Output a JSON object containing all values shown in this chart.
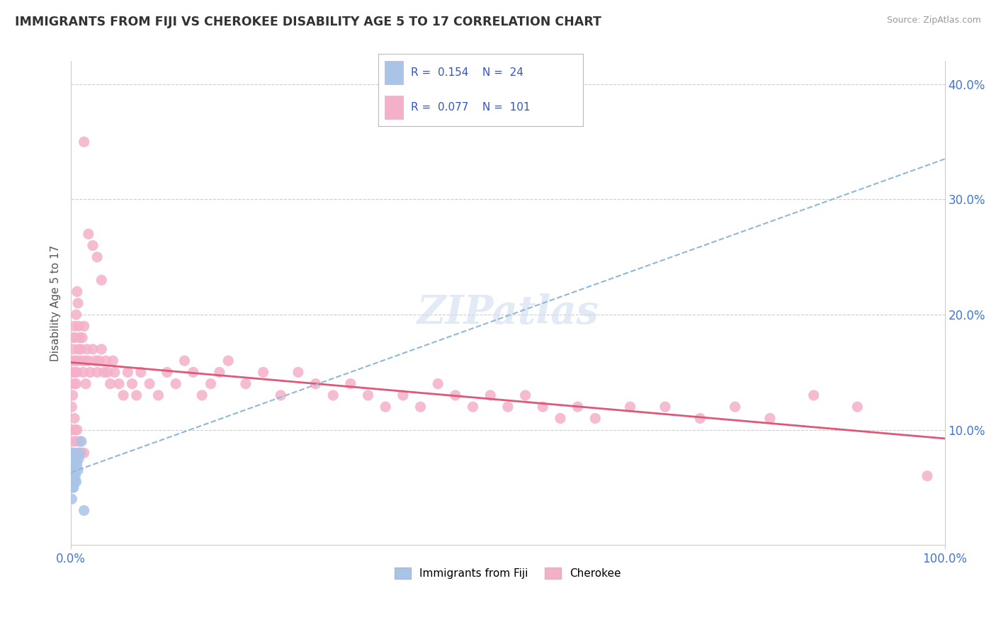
{
  "title": "IMMIGRANTS FROM FIJI VS CHEROKEE DISABILITY AGE 5 TO 17 CORRELATION CHART",
  "source": "Source: ZipAtlas.com",
  "ylabel": "Disability Age 5 to 17",
  "legend_label_1": "Immigrants from Fiji",
  "legend_label_2": "Cherokee",
  "R1": "0.154",
  "N1": "24",
  "R2": "0.077",
  "N2": "101",
  "color_fiji": "#aac4e8",
  "color_cherokee": "#f4b0c8",
  "trendline_fiji_color": "#90b8d8",
  "trendline_cherokee_color": "#e05878",
  "background_color": "#ffffff",
  "grid_color": "#cccccc",
  "title_color": "#333333",
  "axis_label_color": "#4477cc",
  "watermark_color": "#d0ddf0",
  "xlim": [
    0,
    1.0
  ],
  "ylim": [
    0,
    0.42
  ],
  "y_ticks": [
    0.1,
    0.2,
    0.3,
    0.4
  ],
  "y_tick_labels": [
    "10.0%",
    "20.0%",
    "30.0%",
    "40.0%"
  ],
  "fiji_x": [
    0.001,
    0.001,
    0.001,
    0.002,
    0.002,
    0.002,
    0.002,
    0.003,
    0.003,
    0.003,
    0.003,
    0.004,
    0.004,
    0.004,
    0.005,
    0.005,
    0.006,
    0.006,
    0.007,
    0.008,
    0.009,
    0.01,
    0.012,
    0.015
  ],
  "fiji_y": [
    0.04,
    0.055,
    0.07,
    0.05,
    0.06,
    0.065,
    0.08,
    0.05,
    0.06,
    0.07,
    0.08,
    0.055,
    0.065,
    0.075,
    0.06,
    0.07,
    0.055,
    0.075,
    0.07,
    0.065,
    0.075,
    0.08,
    0.09,
    0.03
  ],
  "cherokee_x": [
    0.001,
    0.001,
    0.002,
    0.002,
    0.002,
    0.003,
    0.003,
    0.004,
    0.004,
    0.005,
    0.005,
    0.006,
    0.006,
    0.007,
    0.007,
    0.008,
    0.008,
    0.009,
    0.009,
    0.01,
    0.011,
    0.012,
    0.013,
    0.014,
    0.015,
    0.016,
    0.017,
    0.018,
    0.02,
    0.022,
    0.025,
    0.028,
    0.03,
    0.032,
    0.035,
    0.038,
    0.04,
    0.042,
    0.045,
    0.048,
    0.05,
    0.055,
    0.06,
    0.065,
    0.07,
    0.075,
    0.08,
    0.09,
    0.1,
    0.11,
    0.12,
    0.13,
    0.14,
    0.15,
    0.16,
    0.17,
    0.18,
    0.2,
    0.22,
    0.24,
    0.26,
    0.28,
    0.3,
    0.32,
    0.34,
    0.36,
    0.38,
    0.4,
    0.42,
    0.44,
    0.46,
    0.48,
    0.5,
    0.52,
    0.54,
    0.56,
    0.58,
    0.6,
    0.64,
    0.68,
    0.72,
    0.76,
    0.8,
    0.85,
    0.9,
    0.015,
    0.02,
    0.025,
    0.03,
    0.035,
    0.002,
    0.003,
    0.004,
    0.005,
    0.006,
    0.007,
    0.008,
    0.01,
    0.012,
    0.015,
    0.98
  ],
  "cherokee_y": [
    0.12,
    0.15,
    0.13,
    0.16,
    0.18,
    0.14,
    0.17,
    0.15,
    0.19,
    0.16,
    0.18,
    0.14,
    0.2,
    0.15,
    0.22,
    0.16,
    0.21,
    0.17,
    0.19,
    0.18,
    0.17,
    0.16,
    0.18,
    0.15,
    0.19,
    0.16,
    0.14,
    0.17,
    0.16,
    0.15,
    0.17,
    0.16,
    0.15,
    0.16,
    0.17,
    0.15,
    0.16,
    0.15,
    0.14,
    0.16,
    0.15,
    0.14,
    0.13,
    0.15,
    0.14,
    0.13,
    0.15,
    0.14,
    0.13,
    0.15,
    0.14,
    0.16,
    0.15,
    0.13,
    0.14,
    0.15,
    0.16,
    0.14,
    0.15,
    0.13,
    0.15,
    0.14,
    0.13,
    0.14,
    0.13,
    0.12,
    0.13,
    0.12,
    0.14,
    0.13,
    0.12,
    0.13,
    0.12,
    0.13,
    0.12,
    0.11,
    0.12,
    0.11,
    0.12,
    0.12,
    0.11,
    0.12,
    0.11,
    0.13,
    0.12,
    0.35,
    0.27,
    0.26,
    0.25,
    0.23,
    0.1,
    0.09,
    0.11,
    0.1,
    0.09,
    0.1,
    0.08,
    0.09,
    0.08,
    0.08,
    0.06
  ]
}
